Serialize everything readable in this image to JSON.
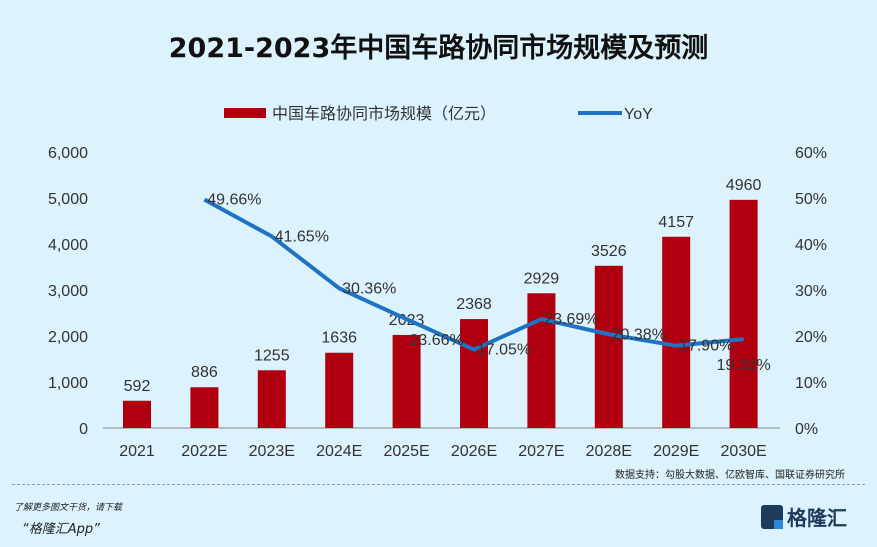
{
  "chart_data": {
    "type": "bar",
    "title": "2021-2023年中国车路协同市场规模及预测",
    "categories": [
      "2021",
      "2022E",
      "2023E",
      "2024E",
      "2025E",
      "2026E",
      "2027E",
      "2028E",
      "2029E",
      "2030E"
    ],
    "series": [
      {
        "name": "中国车路协同市场规模（亿元）",
        "type": "bar",
        "axis": "left",
        "color": "#b00010",
        "values": [
          592,
          886,
          1255,
          1636,
          2023,
          2368,
          2929,
          3526,
          4157,
          4960
        ]
      },
      {
        "name": "YoY",
        "type": "line",
        "axis": "right",
        "color": "#1f73c2",
        "values": [
          null,
          49.66,
          41.65,
          30.36,
          23.66,
          17.05,
          23.69,
          20.38,
          17.9,
          19.32
        ],
        "labels": [
          "",
          "49.66%",
          "41.65%",
          "30.36%",
          "23.66%",
          "17.05%",
          "23.69%",
          "20.38%",
          "17.90%",
          "19.32%"
        ]
      }
    ],
    "ylim": [
      0,
      6000
    ],
    "yticks": [
      "0",
      "1,000",
      "2,000",
      "3,000",
      "4,000",
      "5,000",
      "6,000"
    ],
    "y2lim": [
      0,
      60
    ],
    "y2ticks": [
      "0%",
      "10%",
      "20%",
      "30%",
      "40%",
      "50%",
      "60%"
    ],
    "grid": false,
    "legend": "top-center"
  },
  "footer": {
    "source": "数据支持：勾股大数据、亿欧智库、国联证券研究所",
    "promo_line1": "了解更多图文干货，请下载",
    "promo_line2": "“格隆汇App”",
    "logo": "格隆汇"
  }
}
